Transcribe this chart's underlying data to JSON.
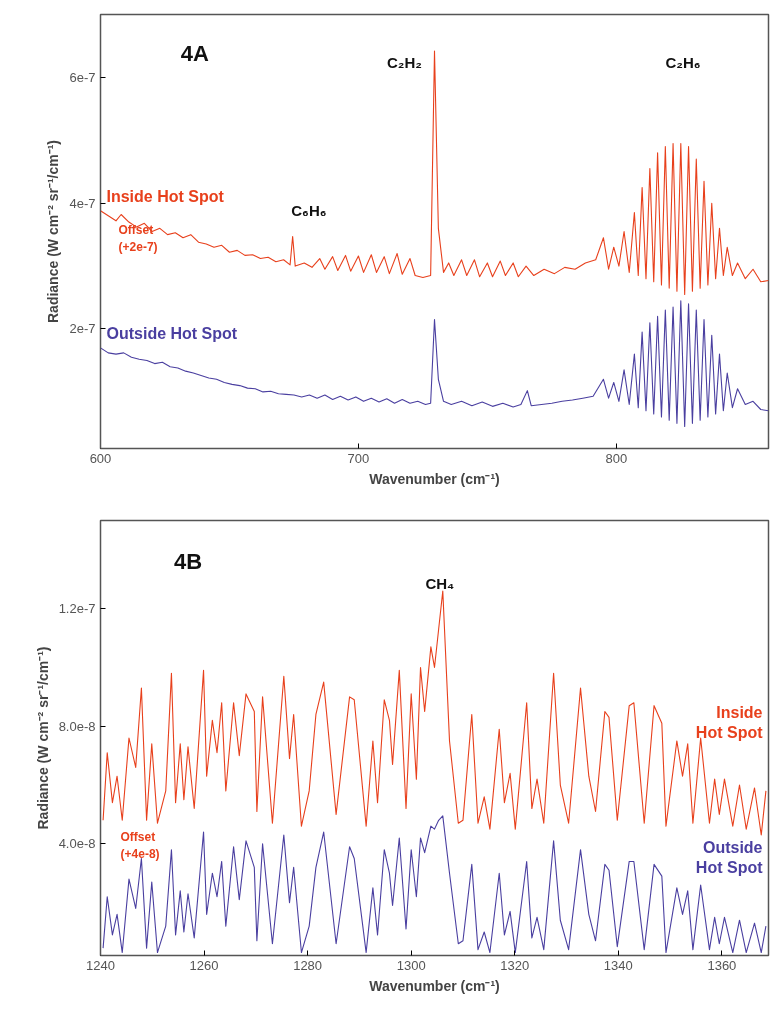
{
  "chart_data": [
    {
      "type": "line",
      "xlabel": "Wavenumber (cm⁻¹)",
      "ylabel": "Radiance (W cm⁻² sr⁻¹/cm⁻¹)",
      "xlim": [
        600,
        859
      ],
      "ylim": [
        1e-08,
        7e-07
      ],
      "xticks": [
        600,
        700,
        800
      ],
      "yticks": [
        {
          "value": 2e-07,
          "label": "2e-7"
        },
        {
          "value": 4e-07,
          "label": "4e-7"
        },
        {
          "value": 6e-07,
          "label": "6e-7"
        }
      ],
      "annotations": [
        "4A",
        "Offset\n(+2e-7)",
        "C₂H₂",
        "C₂H₆",
        "C₆H₆"
      ],
      "series": [
        {
          "name": "Inside Hot Spot",
          "color": "#e8401c",
          "x": [
            600,
            603,
            606,
            608,
            611,
            614,
            617,
            620,
            623,
            626,
            629,
            632,
            635,
            638,
            641,
            644,
            647,
            650,
            653,
            656,
            659,
            662,
            665,
            668,
            671,
            673.5,
            674.5,
            675.5,
            679,
            682,
            685,
            687,
            690,
            692,
            695,
            697,
            700,
            702,
            705,
            707,
            710,
            712,
            715,
            717,
            720,
            722,
            725,
            728,
            729.5,
            731,
            733,
            735,
            737,
            740,
            742,
            745,
            747,
            750,
            752,
            755,
            757,
            760,
            762,
            765,
            768,
            772,
            776,
            780,
            784,
            788,
            792,
            795,
            797,
            799,
            801,
            803,
            805,
            807,
            808.5,
            810,
            811.5,
            813,
            814.5,
            816,
            817.5,
            819,
            820.5,
            822,
            823.5,
            825,
            826.5,
            828,
            829.5,
            831,
            832.5,
            834,
            835.5,
            837,
            838.5,
            840,
            841.5,
            843,
            845,
            847,
            850,
            853,
            856,
            859
          ],
          "values": [
            3.88e-07,
            3.8e-07,
            3.72e-07,
            3.82e-07,
            3.7e-07,
            3.62e-07,
            3.68e-07,
            3.55e-07,
            3.6e-07,
            3.5e-07,
            3.53e-07,
            3.45e-07,
            3.5e-07,
            3.38e-07,
            3.35e-07,
            3.3e-07,
            3.33e-07,
            3.22e-07,
            3.25e-07,
            3.17e-07,
            3.18e-07,
            3.12e-07,
            3.14e-07,
            3.07e-07,
            3.1e-07,
            3.02e-07,
            3.47e-07,
            3e-07,
            3.05e-07,
            2.98e-07,
            3.12e-07,
            2.95e-07,
            3.15e-07,
            2.93e-07,
            3.17e-07,
            2.92e-07,
            3.16e-07,
            2.9e-07,
            3.18e-07,
            2.9e-07,
            3.15e-07,
            2.88e-07,
            3.2e-07,
            2.87e-07,
            3.12e-07,
            2.85e-07,
            2.82e-07,
            2.85e-07,
            6.42e-07,
            3.6e-07,
            2.9e-07,
            3.05e-07,
            2.85e-07,
            3.1e-07,
            2.85e-07,
            3.1e-07,
            2.83e-07,
            3.05e-07,
            2.83e-07,
            3.08e-07,
            2.85e-07,
            3.05e-07,
            2.83e-07,
            3e-07,
            2.85e-07,
            2.95e-07,
            2.88e-07,
            2.98e-07,
            2.95e-07,
            3.05e-07,
            3.1e-07,
            3.45e-07,
            2.95e-07,
            3.3e-07,
            3e-07,
            3.55e-07,
            2.9e-07,
            3.85e-07,
            2.85e-07,
            4.25e-07,
            2.8e-07,
            4.55e-07,
            2.75e-07,
            4.8e-07,
            2.7e-07,
            4.9e-07,
            2.65e-07,
            4.95e-07,
            2.6e-07,
            4.95e-07,
            2.55e-07,
            4.9e-07,
            2.6e-07,
            4.7e-07,
            2.65e-07,
            4.35e-07,
            2.7e-07,
            4e-07,
            2.8e-07,
            3.6e-07,
            2.85e-07,
            3.3e-07,
            2.85e-07,
            3.05e-07,
            2.8e-07,
            2.95e-07,
            2.75e-07,
            2.77e-07
          ]
        },
        {
          "name": "Outside Hot Spot",
          "color": "#4a3fa0",
          "x": [
            600,
            603,
            606,
            609,
            612,
            615,
            618,
            621,
            624,
            627,
            630,
            633,
            636,
            639,
            642,
            645,
            648,
            651,
            654,
            657,
            660,
            663,
            666,
            669,
            672,
            675,
            678,
            681,
            684,
            687,
            690,
            693,
            696,
            699,
            702,
            705,
            708,
            711,
            714,
            717,
            720,
            723,
            726,
            728,
            729.5,
            731,
            733,
            736,
            740,
            744,
            748,
            752,
            756,
            760,
            763,
            765.5,
            767,
            771,
            775,
            779,
            783,
            787,
            791,
            795,
            797,
            799,
            801,
            803,
            805,
            807,
            808.5,
            810,
            811.5,
            813,
            814.5,
            816,
            817.5,
            819,
            820.5,
            822,
            823.5,
            825,
            826.5,
            828,
            829.5,
            831,
            832.5,
            834,
            835.5,
            837,
            838.5,
            840,
            841.5,
            843,
            845,
            847,
            850,
            853,
            856,
            859
          ],
          "values": [
            1.7e-07,
            1.62e-07,
            1.6e-07,
            1.62e-07,
            1.55e-07,
            1.52e-07,
            1.5e-07,
            1.45e-07,
            1.47e-07,
            1.4e-07,
            1.38e-07,
            1.33e-07,
            1.3e-07,
            1.26e-07,
            1.22e-07,
            1.2e-07,
            1.15e-07,
            1.12e-07,
            1.1e-07,
            1.06e-07,
            1.05e-07,
            1e-07,
            1.01e-07,
            9.7e-08,
            9.6e-08,
            9.5e-08,
            9.2e-08,
            9.5e-08,
            9e-08,
            9.5e-08,
            8.8e-08,
            9.3e-08,
            8.7e-08,
            9.2e-08,
            8.5e-08,
            9e-08,
            8.4e-08,
            8.9e-08,
            8.2e-08,
            8.8e-08,
            8.2e-08,
            8.5e-08,
            8e-08,
            8.2e-08,
            2.15e-07,
            1.2e-07,
            8.5e-08,
            8e-08,
            8.5e-08,
            7.8e-08,
            8.4e-08,
            7.7e-08,
            8.2e-08,
            7.6e-08,
            8e-08,
            1.02e-07,
            7.8e-08,
            8e-08,
            8.2e-08,
            8.5e-08,
            8.7e-08,
            9e-08,
            9.3e-08,
            1.2e-07,
            9e-08,
            1.15e-07,
            8.5e-08,
            1.35e-07,
            8e-08,
            1.6e-07,
            7.5e-08,
            1.95e-07,
            7e-08,
            2.1e-07,
            6.5e-08,
            2.2e-07,
            6e-08,
            2.3e-07,
            5.5e-08,
            2.35e-07,
            5e-08,
            2.45e-07,
            4.5e-08,
            2.4e-07,
            5e-08,
            2.3e-07,
            5.5e-08,
            2.15e-07,
            6e-08,
            1.9e-07,
            6.5e-08,
            1.6e-07,
            7e-08,
            1.3e-07,
            7.5e-08,
            1.05e-07,
            8e-08,
            8.5e-08,
            7.2e-08,
            7e-08
          ]
        }
      ]
    },
    {
      "type": "line",
      "xlabel": "Wavenumber (cm⁻¹)",
      "ylabel": "Radiance (W cm⁻² sr⁻¹/cm⁻¹)",
      "xlim": [
        1240,
        1369
      ],
      "ylim": [
        2e-09,
        1.5e-07
      ],
      "xticks": [
        1240,
        1260,
        1280,
        1300,
        1320,
        1340,
        1360
      ],
      "yticks": [
        {
          "value": 4e-08,
          "label": "4.0e-8"
        },
        {
          "value": 8e-08,
          "label": "8.0e-8"
        },
        {
          "value": 1.2e-07,
          "label": "1.2e-7"
        }
      ],
      "annotations": [
        "4B",
        "Offset\n(+4e-8)",
        "CH₄"
      ],
      "series": [
        {
          "name": "Inside Hot Spot",
          "color": "#e8401c",
          "x": [
            1240.5,
            1241.3,
            1242.3,
            1243.2,
            1244.2,
            1245.5,
            1246.8,
            1247.9,
            1248.9,
            1249.9,
            1251.0,
            1252.6,
            1253.7,
            1254.5,
            1255.4,
            1256.1,
            1256.9,
            1258.1,
            1259.9,
            1260.5,
            1261.6,
            1262.5,
            1263.4,
            1264.2,
            1265.7,
            1266.8,
            1268.1,
            1269.7,
            1270.2,
            1271.3,
            1273.2,
            1275.4,
            1276.5,
            1277.3,
            1278.8,
            1280.3,
            1281.6,
            1283.1,
            1285.5,
            1288.1,
            1289.0,
            1291.3,
            1292.6,
            1293.5,
            1294.8,
            1295.8,
            1296.4,
            1297.7,
            1299.0,
            1300.0,
            1301.0,
            1301.8,
            1302.6,
            1303.8,
            1304.5,
            1305.3,
            1306.1,
            1307.4,
            1309.1,
            1310.0,
            1311.7,
            1312.9,
            1314.1,
            1315.2,
            1317.0,
            1318.0,
            1319.1,
            1320.1,
            1322.3,
            1323.3,
            1324.3,
            1325.6,
            1327.5,
            1328.8,
            1330.4,
            1332.7,
            1334.3,
            1335.6,
            1337.4,
            1338.2,
            1339.8,
            1342.1,
            1343.0,
            1345.0,
            1346.9,
            1348.4,
            1349.2,
            1351.3,
            1352.4,
            1353.4,
            1354.4,
            1355.9,
            1357.6,
            1358.6,
            1359.5,
            1360.5,
            1362.1,
            1363.4,
            1364.7,
            1366.3,
            1367.6,
            1368.5
          ],
          "values": [
            4.8e-08,
            7.1e-08,
            5.4e-08,
            6.3e-08,
            4.8e-08,
            7.6e-08,
            6.6e-08,
            9.3e-08,
            4.8e-08,
            7.4e-08,
            4.7e-08,
            5.8e-08,
            9.8e-08,
            5.4e-08,
            7.4e-08,
            5.5e-08,
            7.3e-08,
            5.2e-08,
            9.9e-08,
            6.3e-08,
            8.2e-08,
            7.1e-08,
            8.8e-08,
            5.8e-08,
            8.8e-08,
            7e-08,
            9.1e-08,
            8.5e-08,
            5.1e-08,
            9e-08,
            4.7e-08,
            9.7e-08,
            6.9e-08,
            8.4e-08,
            4.6e-08,
            5.8e-08,
            8.4e-08,
            9.5e-08,
            5e-08,
            9e-08,
            8.9e-08,
            4.6e-08,
            7.5e-08,
            5.4e-08,
            8.9e-08,
            8.2e-08,
            6.7e-08,
            9.9e-08,
            5.2e-08,
            9.1e-08,
            6.2e-08,
            1e-07,
            8.5e-08,
            1.07e-07,
            1e-07,
            1.13e-07,
            1.26e-07,
            7.5e-08,
            4.7e-08,
            4.8e-08,
            8.4e-08,
            4.7e-08,
            5.6e-08,
            4.5e-08,
            7.9e-08,
            5.4e-08,
            6.4e-08,
            4.5e-08,
            8.8e-08,
            5.2e-08,
            6.2e-08,
            4.7e-08,
            9.8e-08,
            6e-08,
            4.7e-08,
            9.3e-08,
            6.3e-08,
            5.1e-08,
            8.5e-08,
            8.3e-08,
            4.8e-08,
            8.7e-08,
            8.8e-08,
            4.7e-08,
            8.7e-08,
            8.1e-08,
            4.6e-08,
            7.5e-08,
            6.3e-08,
            7.4e-08,
            4.7e-08,
            7.6e-08,
            4.7e-08,
            6.2e-08,
            5e-08,
            6.2e-08,
            4.6e-08,
            6e-08,
            4.5e-08,
            5.9e-08,
            4.3e-08,
            5.8e-08
          ]
        },
        {
          "name": "Outside Hot Spot",
          "color": "#4a3fa0",
          "x": [
            1240.5,
            1241.3,
            1242.3,
            1243.2,
            1244.2,
            1245.5,
            1246.8,
            1247.9,
            1248.9,
            1249.9,
            1251.0,
            1252.6,
            1253.7,
            1254.5,
            1255.4,
            1256.1,
            1256.9,
            1258.1,
            1259.9,
            1260.5,
            1261.6,
            1262.5,
            1263.4,
            1264.2,
            1265.7,
            1266.8,
            1268.1,
            1269.7,
            1270.2,
            1271.3,
            1273.2,
            1275.4,
            1276.5,
            1277.3,
            1278.8,
            1280.3,
            1281.6,
            1283.1,
            1285.5,
            1288.1,
            1289.0,
            1291.3,
            1292.6,
            1293.5,
            1294.8,
            1295.8,
            1296.4,
            1297.7,
            1299.0,
            1300.0,
            1301.0,
            1301.8,
            1302.6,
            1303.8,
            1304.5,
            1305.3,
            1306.1,
            1307.4,
            1309.1,
            1310.0,
            1311.7,
            1312.9,
            1314.1,
            1315.2,
            1317.0,
            1318.0,
            1319.1,
            1320.1,
            1322.3,
            1323.3,
            1324.3,
            1325.6,
            1327.5,
            1328.8,
            1330.4,
            1332.7,
            1334.3,
            1335.6,
            1337.4,
            1338.2,
            1339.8,
            1342.1,
            1343.0,
            1345.0,
            1346.9,
            1348.4,
            1349.2,
            1351.3,
            1352.4,
            1353.4,
            1354.4,
            1355.9,
            1357.6,
            1358.6,
            1359.5,
            1360.5,
            1362.1,
            1363.4,
            1364.7,
            1366.3,
            1367.6,
            1368.5
          ],
          "values": [
            4.5e-09,
            2.2e-08,
            9e-09,
            1.6e-08,
            3e-09,
            2.8e-08,
            1.8e-08,
            3.5e-08,
            4.5e-09,
            2.7e-08,
            3e-09,
            1.2e-08,
            3.8e-08,
            9e-09,
            2.4e-08,
            1e-08,
            2.3e-08,
            8e-09,
            4.4e-08,
            1.6e-08,
            3e-08,
            2.2e-08,
            3.4e-08,
            1.2e-08,
            3.9e-08,
            2.1e-08,
            4.1e-08,
            3.2e-08,
            7e-09,
            4e-08,
            6e-09,
            4.3e-08,
            2e-08,
            3.2e-08,
            3e-09,
            1.2e-08,
            3.2e-08,
            4.4e-08,
            6e-09,
            3.9e-08,
            3.5e-08,
            3e-09,
            2.5e-08,
            9e-09,
            3.8e-08,
            3e-08,
            1.9e-08,
            4.2e-08,
            1.1e-08,
            3.8e-08,
            2.2e-08,
            4.2e-08,
            3.7e-08,
            4.6e-08,
            4.5e-08,
            4.8e-08,
            4.95e-08,
            3e-08,
            6e-09,
            7e-09,
            3.3e-08,
            4e-09,
            1e-08,
            3e-09,
            3e-08,
            9e-09,
            1.7e-08,
            3e-09,
            3.4e-08,
            8e-09,
            1.5e-08,
            4e-09,
            4.1e-08,
            1.4e-08,
            4e-09,
            3.8e-08,
            1.6e-08,
            7e-09,
            3.3e-08,
            3.1e-08,
            5e-09,
            3.4e-08,
            3.4e-08,
            4e-09,
            3.3e-08,
            2.9e-08,
            3e-09,
            2.5e-08,
            1.6e-08,
            2.4e-08,
            4e-09,
            2.6e-08,
            4e-09,
            1.5e-08,
            6e-09,
            1.5e-08,
            3e-09,
            1.4e-08,
            3e-09,
            1.3e-08,
            3e-09,
            1.2e-08
          ]
        }
      ]
    }
  ]
}
